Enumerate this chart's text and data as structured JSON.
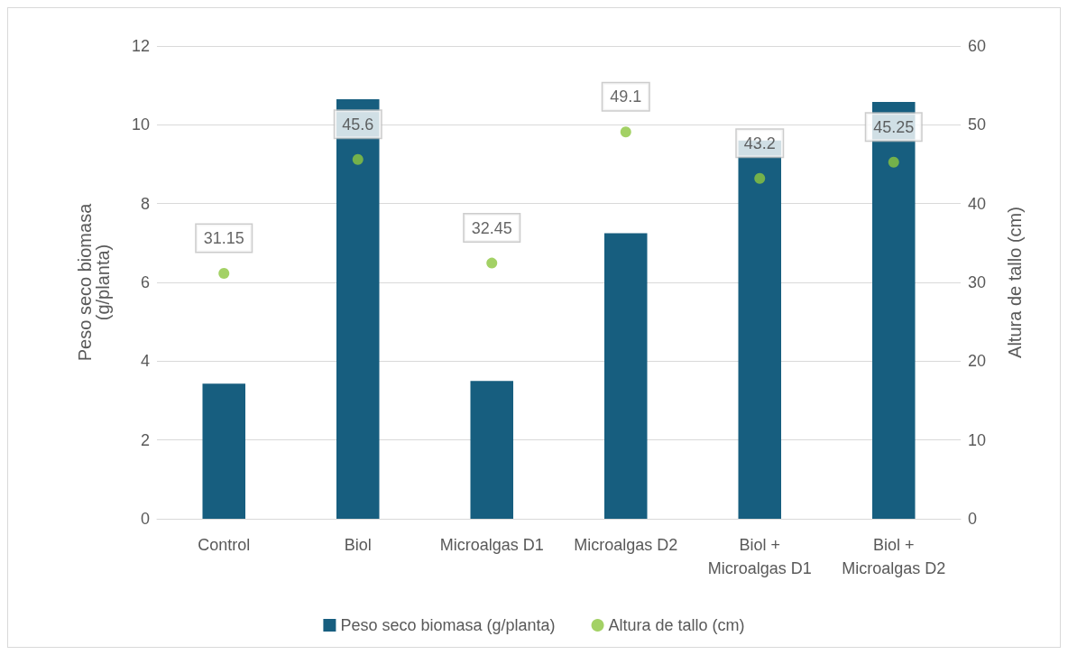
{
  "chart_data": {
    "type": "bar",
    "categories": [
      "Control",
      "Biol",
      "Microalgas D1",
      "Microalgas D2",
      "Biol +\nMicroalgas D1",
      "Biol +\nMicroalgas D2"
    ],
    "series": [
      {
        "name": "Peso seco biomasa (g/planta)",
        "color": "#175e7f",
        "values": [
          3.43,
          10.65,
          3.5,
          7.25,
          9.6,
          10.58
        ]
      },
      {
        "name": "Altura de tallo (cm)",
        "type": "scatter",
        "axis": "y2",
        "color": "#8cc63f",
        "values": [
          31.15,
          45.6,
          32.45,
          49.1,
          43.2,
          45.25
        ],
        "value_labels": [
          "31.15",
          "45.6",
          "32.45",
          "49.1",
          "43.2",
          "45.25"
        ]
      }
    ],
    "ylabel": "Peso seco biomasa\n(g/planta)",
    "y2label": "Altura de tallo (cm)",
    "ylim": [
      0,
      12
    ],
    "yticks": [
      0,
      2,
      4,
      6,
      8,
      10,
      12
    ],
    "y2lim": [
      0,
      60
    ],
    "y2ticks": [
      0,
      10,
      20,
      30,
      40,
      50,
      60
    ],
    "grid": "y",
    "legend": "bottom",
    "marker": "circle"
  }
}
